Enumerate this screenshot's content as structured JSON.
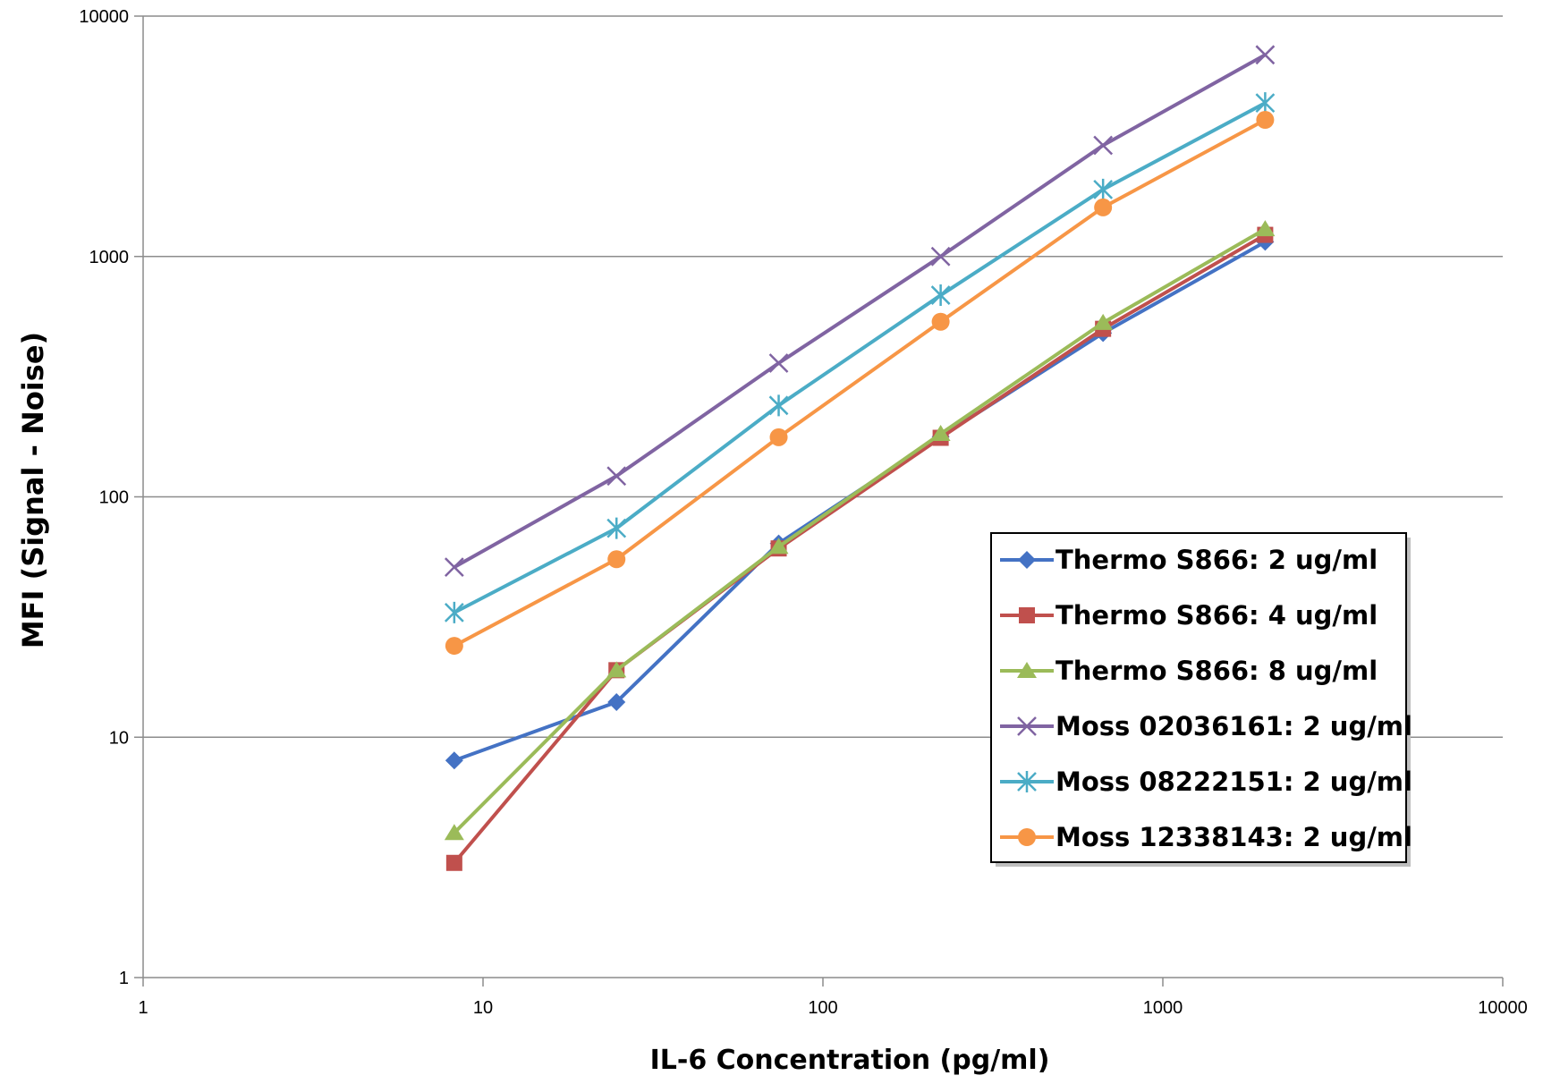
{
  "chart_data": {
    "type": "line",
    "title": "",
    "xlabel": "IL-6 Concentration (pg/ml)",
    "ylabel": "MFI (Signal - Noise)",
    "x_scale": "log",
    "y_scale": "log",
    "xlim": [
      1,
      10000
    ],
    "ylim": [
      1,
      10000
    ],
    "x_ticks": [
      "1",
      "10",
      "100",
      "1000",
      "10000"
    ],
    "y_ticks": [
      "1",
      "10",
      "100",
      "1000",
      "10000"
    ],
    "grid": "horizontal major gridlines",
    "legend_position": "right",
    "x": [
      8.23,
      24.7,
      74.1,
      222,
      667,
      2000
    ],
    "series": [
      {
        "name": "Thermo S866: 2 ug/ml",
        "color": "#4472C4",
        "marker": "diamond",
        "values": [
          8,
          14,
          64,
          178,
          480,
          1150
        ]
      },
      {
        "name": "Thermo S866: 4 ug/ml",
        "color": "#C0504D",
        "marker": "square",
        "values": [
          3,
          19,
          61,
          176,
          500,
          1230
        ]
      },
      {
        "name": "Thermo S866: 8 ug/ml",
        "color": "#9BBB59",
        "marker": "triangle",
        "values": [
          4,
          19,
          62,
          183,
          530,
          1300
        ]
      },
      {
        "name": "Moss 02036161: 2 ug/ml",
        "color": "#8064A2",
        "marker": "x",
        "values": [
          51,
          122,
          360,
          1000,
          2900,
          6900
        ]
      },
      {
        "name": "Moss 08222151: 2 ug/ml",
        "color": "#4BACC6",
        "marker": "star",
        "values": [
          33,
          74,
          240,
          690,
          1900,
          4350
        ]
      },
      {
        "name": "Moss 12338143: 2 ug/ml",
        "color": "#F79646",
        "marker": "circle",
        "values": [
          24,
          55,
          177,
          535,
          1600,
          3700
        ]
      }
    ]
  }
}
